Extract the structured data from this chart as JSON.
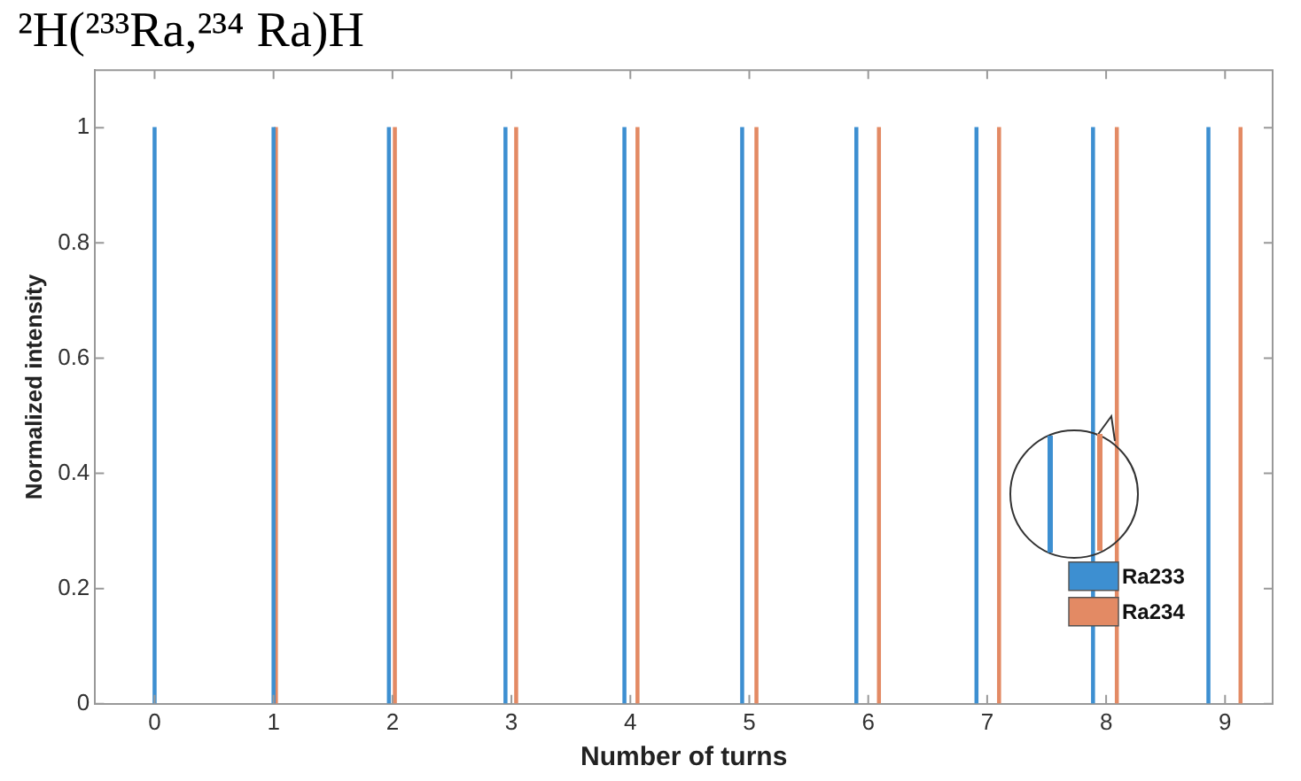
{
  "chart_data": {
    "type": "bar",
    "title": "²H(²³³Ra,²³⁴ Ra)H",
    "xlabel": "Number of turns",
    "ylabel": "Normalized intensity",
    "series": [
      {
        "name": "Ra233",
        "color": "#3d8fd1",
        "x": [
          0,
          1,
          1.97,
          2.95,
          3.95,
          4.94,
          5.9,
          6.91,
          7.89,
          8.86
        ],
        "values": [
          1,
          1,
          1,
          1,
          1,
          1,
          1,
          1,
          1,
          1
        ]
      },
      {
        "name": "Ra234",
        "color": "#e38a64",
        "x": [
          1.02,
          2.02,
          3.04,
          4.06,
          5.06,
          6.09,
          7.1,
          8.09,
          9.13
        ],
        "values": [
          1,
          1,
          1,
          1,
          1,
          1,
          1,
          1,
          1
        ]
      }
    ],
    "xlim": [
      -0.5,
      9.4
    ],
    "xticks": [
      0,
      1,
      2,
      3,
      4,
      5,
      6,
      7,
      8,
      9
    ],
    "ylim": [
      0,
      1.1
    ],
    "yticks": [
      0,
      0.2,
      0.4,
      0.6,
      0.8,
      1
    ],
    "legend": "bottom right",
    "grid": false
  }
}
